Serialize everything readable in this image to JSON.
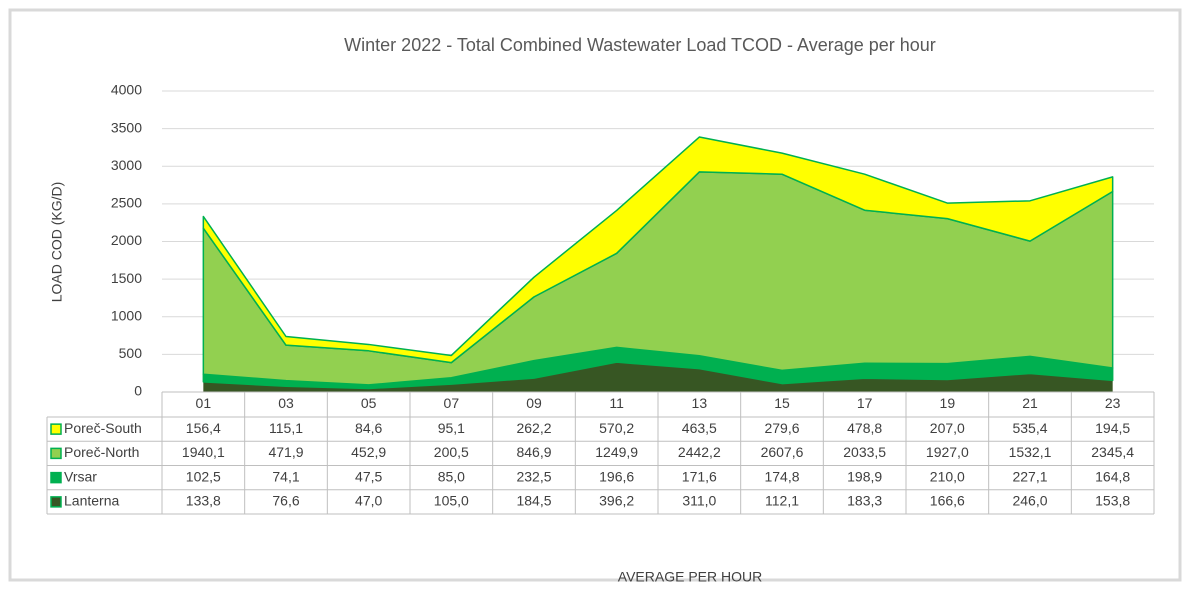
{
  "chart_data": {
    "type": "area",
    "title": "Winter 2022 - Total Combined Wastewater Load TCOD - Average per hour",
    "y_label": "LOAD COD (KG/D)",
    "x_label": "AVERAGE PER HOUR",
    "categories": [
      "01",
      "03",
      "05",
      "07",
      "09",
      "11",
      "13",
      "15",
      "17",
      "19",
      "21",
      "23"
    ],
    "ylim": [
      0,
      4000
    ],
    "yticks": [
      0,
      500,
      1000,
      1500,
      2000,
      2500,
      3000,
      3500,
      4000
    ],
    "grid": true,
    "stacked": true,
    "series": [
      {
        "name": "Poreč-South",
        "color": "#ffff00",
        "values": [
          156.4,
          115.1,
          84.6,
          95.1,
          262.2,
          570.2,
          463.5,
          279.6,
          478.8,
          207.0,
          535.4,
          194.5
        ],
        "value_labels": [
          "156,4",
          "115,1",
          "84,6",
          "95,1",
          "262,2",
          "570,2",
          "463,5",
          "279,6",
          "478,8",
          "207,0",
          "535,4",
          "194,5"
        ]
      },
      {
        "name": "Poreč-North",
        "color": "#92d050",
        "values": [
          1940.1,
          471.9,
          452.9,
          200.5,
          846.9,
          1249.9,
          2442.2,
          2607.6,
          2033.5,
          1927.0,
          1532.1,
          2345.4
        ],
        "value_labels": [
          "1940,1",
          "471,9",
          "452,9",
          "200,5",
          "846,9",
          "1249,9",
          "2442,2",
          "2607,6",
          "2033,5",
          "1927,0",
          "1532,1",
          "2345,4"
        ]
      },
      {
        "name": "Vrsar",
        "color": "#00b050",
        "values": [
          102.5,
          74.1,
          47.5,
          85.0,
          232.5,
          196.6,
          171.6,
          174.8,
          198.9,
          210.0,
          227.1,
          164.8
        ],
        "value_labels": [
          "102,5",
          "74,1",
          "47,5",
          "85,0",
          "232,5",
          "196,6",
          "171,6",
          "174,8",
          "198,9",
          "210,0",
          "227,1",
          "164,8"
        ]
      },
      {
        "name": "Lanterna",
        "color": "#375623",
        "values": [
          133.8,
          76.6,
          47.0,
          105.0,
          184.5,
          396.2,
          311.0,
          112.1,
          183.3,
          166.6,
          246.0,
          153.8
        ],
        "value_labels": [
          "133,8",
          "76,6",
          "47,0",
          "105,0",
          "184,5",
          "396,2",
          "311,0",
          "112,1",
          "183,3",
          "166,6",
          "246,0",
          "153,8"
        ]
      }
    ]
  }
}
